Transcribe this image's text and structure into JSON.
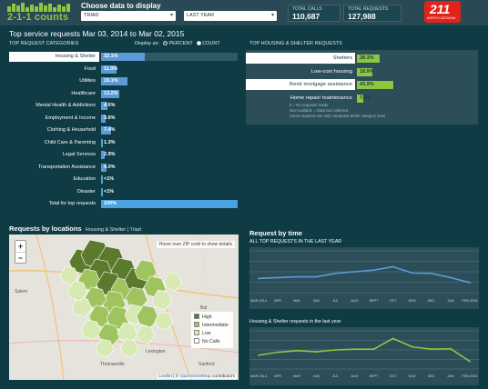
{
  "header": {
    "logo_text": "2-1-1 counts",
    "choose_label": "Choose data to display",
    "location_select": "TRIAD",
    "period_select": "LAST YEAR",
    "total_calls_label": "TOTAL CALLS",
    "total_calls_value": "110,687",
    "total_requests_label": "TOTAL REQUESTS",
    "total_requests_value": "127,988",
    "badge_big": "211",
    "badge_small": "NORTH CAROLINA"
  },
  "page": {
    "title": "Top service requests Mar 03, 2014 to Mar 02, 2015",
    "categories_heading": "TOP REQUEST CATEGORIES",
    "display_as": "Display as:",
    "percent_option": "PERCENT",
    "count_option": "COUNT",
    "hs_heading": "TOP HOUSING & SHELTER REQUESTS"
  },
  "categories": [
    {
      "label": "Housing & Shelter",
      "value": "32.1%",
      "pct": 32.1,
      "selected": true
    },
    {
      "label": "Food",
      "value": "11.0%",
      "pct": 11.0,
      "selected": false
    },
    {
      "label": "Utilities",
      "value": "19.1%",
      "pct": 19.1,
      "selected": false
    },
    {
      "label": "Healthcare",
      "value": "13.2%",
      "pct": 13.2,
      "selected": false
    },
    {
      "label": "Mental Health & Addictions",
      "value": "4.6%",
      "pct": 4.6,
      "selected": false
    },
    {
      "label": "Employment & Income",
      "value": "3.6%",
      "pct": 3.6,
      "selected": false
    },
    {
      "label": "Clothing & Household",
      "value": "7.4%",
      "pct": 7.4,
      "selected": false
    },
    {
      "label": "Child Care & Parenting",
      "value": "1.3%",
      "pct": 1.3,
      "selected": false
    },
    {
      "label": "Legal Services",
      "value": "2.9%",
      "pct": 2.9,
      "selected": false
    },
    {
      "label": "Transportation Assistance",
      "value": "4.0%",
      "pct": 4.0,
      "selected": false
    },
    {
      "label": "Education",
      "value": "<1%",
      "pct": 0.5,
      "selected": false
    },
    {
      "label": "Disaster",
      "value": "<1%",
      "pct": 0.5,
      "selected": false
    },
    {
      "label": "Total for top requests",
      "value": "100%",
      "pct": 100,
      "selected": false,
      "total": true
    }
  ],
  "housing_requests": [
    {
      "label": "Shelters",
      "value": "28.3%",
      "pct": 28.3,
      "selected": true
    },
    {
      "label": "Low-cost housing",
      "value": "18.9%",
      "pct": 18.9,
      "selected": false
    },
    {
      "label": "Rent/ mortgage assistance",
      "value": "43.9%",
      "pct": 43.9,
      "selected": true
    },
    {
      "label": "Home repair/ maintenance",
      "value": "7.9%",
      "pct": 7.9,
      "selected": false
    }
  ],
  "notes": [
    "0 = No requests made",
    "Not Available = Data not collected",
    "Some requests are only computed at the category level"
  ],
  "map_section": {
    "title": "Requests by locations",
    "subtitle": "Housing & Shelter | Triad",
    "hover_hint": "Hover over ZIP code to show details",
    "zoom_in": "+",
    "zoom_out": "−",
    "legend": [
      {
        "label": "High",
        "color": "#5b7a2e"
      },
      {
        "label": "Intermediate",
        "color": "#9fc35f"
      },
      {
        "label": "Low",
        "color": "#d7eab4"
      },
      {
        "label": "No Calls",
        "color": "#ffffff"
      }
    ],
    "attribution_leaflet": "Leaflet",
    "attribution_osm": "OpenStreetMap",
    "attribution_tail": "contributors",
    "place_labels": [
      "Salem",
      "Bal",
      "Thomasville",
      "Lexington",
      "Sanford"
    ]
  },
  "time_section": {
    "title": "Request by time",
    "all_title": "ALL TOP REQUESTS IN THE LAST YEAR",
    "hs_title": "Housing & Shelter requests in the last year",
    "month_labels": [
      "MAR 2014",
      "APR",
      "MAY",
      "JUN",
      "JUL",
      "AUG",
      "SEPT",
      "OCT",
      "NOV",
      "DEC",
      "JAN",
      "FEB 2015"
    ]
  },
  "chart_data": [
    {
      "type": "line",
      "title": "ALL TOP REQUESTS IN THE LAST YEAR",
      "x": [
        "MAR 2014",
        "APR",
        "MAY",
        "JUN",
        "JUL",
        "AUG",
        "SEPT",
        "OCT",
        "NOV",
        "DEC",
        "JAN",
        "FEB 2015"
      ],
      "series": [
        {
          "values": [
            0.34,
            0.36,
            0.38,
            0.38,
            0.46,
            0.5,
            0.54,
            0.62,
            0.47,
            0.46,
            0.36,
            0.24
          ]
        }
      ],
      "ylim": [
        0,
        1
      ],
      "color": "#5b9bd5",
      "grid": true
    },
    {
      "type": "line",
      "title": "Housing & Shelter requests in the last year",
      "x": [
        "MAR 2014",
        "APR",
        "MAY",
        "JUN",
        "JUL",
        "AUG",
        "SEPT",
        "OCT",
        "NOV",
        "DEC",
        "JAN",
        "FEB 2015"
      ],
      "series": [
        {
          "values": [
            0.36,
            0.44,
            0.48,
            0.45,
            0.5,
            0.52,
            0.52,
            0.8,
            0.58,
            0.52,
            0.53,
            0.2
          ]
        }
      ],
      "ylim": [
        0,
        1
      ],
      "color": "#8dc63f",
      "grid": true
    }
  ]
}
